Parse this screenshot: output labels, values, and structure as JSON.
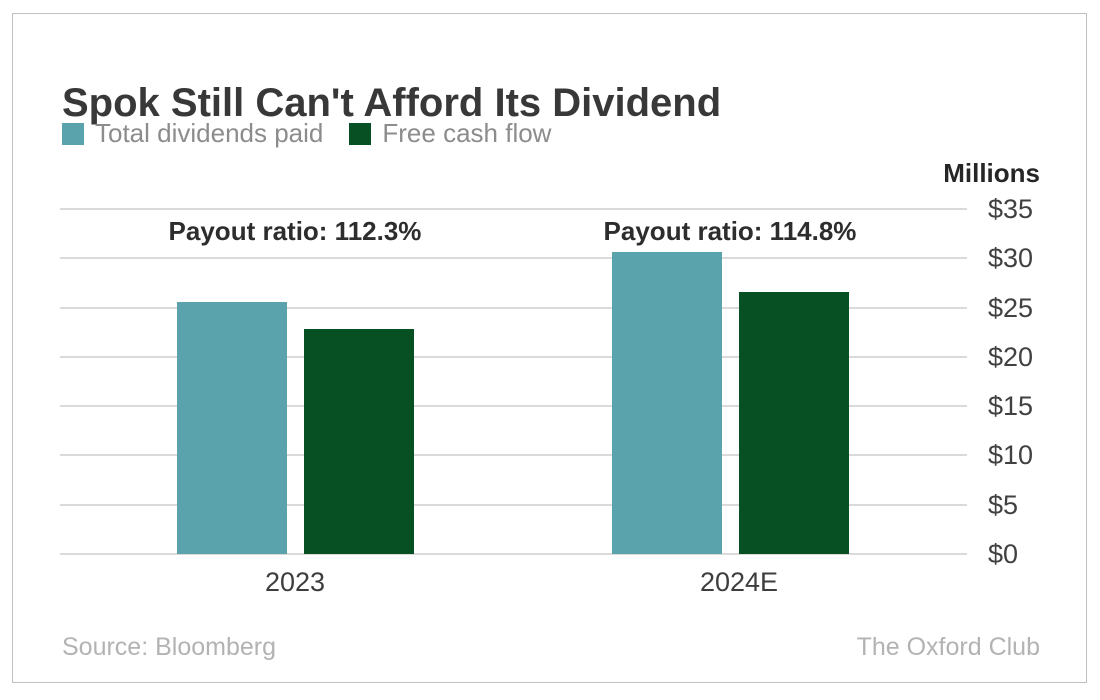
{
  "chart_data": {
    "type": "bar",
    "title": "Spok Still Can't Afford Its Dividend",
    "unit_label": "Millions",
    "categories": [
      "2023",
      "2024E"
    ],
    "series": [
      {
        "name": "Total dividends paid",
        "color": "#5ba3ac",
        "values": [
          25.6,
          30.6
        ]
      },
      {
        "name": "Free cash flow",
        "color": "#075023",
        "values": [
          22.8,
          26.6
        ]
      }
    ],
    "annotations": [
      "Payout ratio: 112.3%",
      "Payout ratio: 114.8%"
    ],
    "y_axis": {
      "min": 0,
      "max": 35,
      "step": 5,
      "tick_labels": [
        "$0",
        "$5",
        "$10",
        "$15",
        "$20",
        "$25",
        "$30",
        "$35"
      ],
      "side": "right"
    },
    "grid": true,
    "legend_position": "top-left"
  },
  "footer": {
    "source": "Source: Bloomberg",
    "brand": "The Oxford Club"
  }
}
